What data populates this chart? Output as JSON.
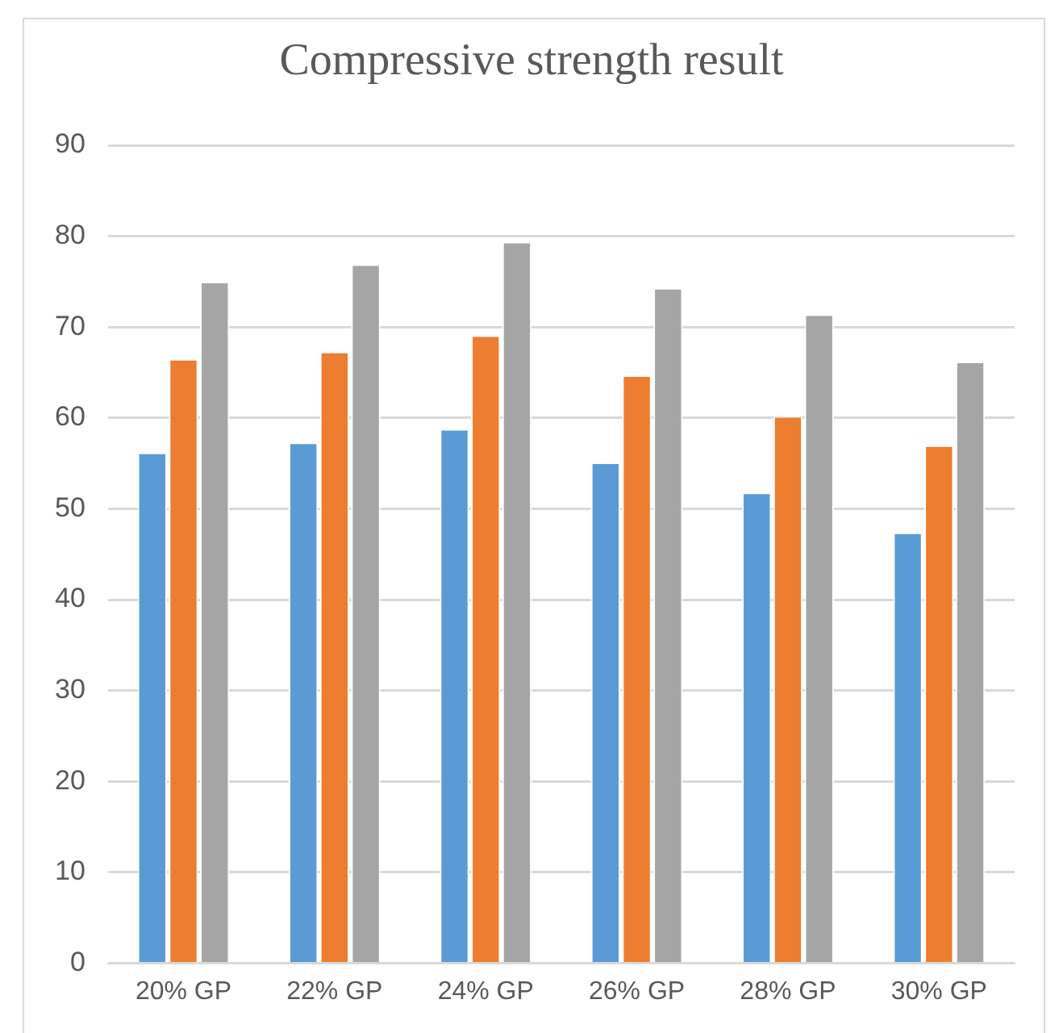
{
  "chart_data": {
    "type": "bar",
    "title": "Compressive strength result",
    "categories": [
      "20% GP",
      "22% GP",
      "24% GP",
      "26% GP",
      "28% GP",
      "30% GP"
    ],
    "series": [
      {
        "color": "#5b9bd5",
        "values": [
          56.2,
          57.3,
          58.8,
          55.1,
          51.8,
          47.4
        ]
      },
      {
        "color": "#ed7d31",
        "values": [
          66.5,
          67.3,
          69.1,
          64.7,
          60.2,
          57.0
        ]
      },
      {
        "color": "#a5a5a5",
        "values": [
          75.0,
          76.9,
          79.4,
          74.3,
          71.4,
          66.2
        ]
      }
    ],
    "ylim": [
      0,
      90
    ],
    "yticks": [
      0,
      10,
      20,
      30,
      40,
      50,
      60,
      70,
      80,
      90
    ],
    "grid": "y",
    "legend": false
  }
}
